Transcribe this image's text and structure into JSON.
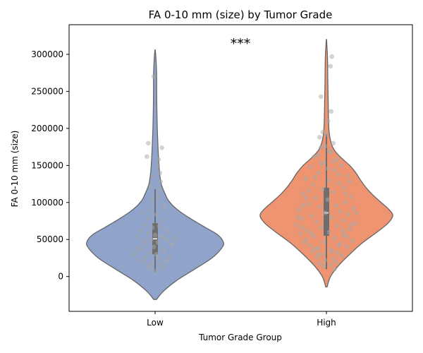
{
  "chart_data": {
    "type": "violin",
    "title": "FA 0-10 mm (size) by Tumor Grade",
    "xlabel": "Tumor Grade Group",
    "ylabel": "FA 0-10 mm (size)",
    "categories": [
      "Low",
      "High"
    ],
    "ylim": [
      -47000,
      340000
    ],
    "yticks": [
      0,
      50000,
      100000,
      150000,
      200000,
      250000,
      300000
    ],
    "ytick_labels": [
      "0",
      "50000",
      "100000",
      "150000",
      "200000",
      "250000",
      "300000"
    ],
    "annotation": "***",
    "colors": {
      "Low": "#8fa3cb",
      "High": "#ef9470",
      "points": "#a8a8a8",
      "outline": "#666666",
      "box": "#6e6e6e"
    },
    "grid": false,
    "legend": "none",
    "series": [
      {
        "category": "Low",
        "color": "#8fa3cb",
        "range": [
          -31000,
          306000
        ],
        "box": {
          "q1": 30000,
          "median": 51000,
          "q3": 72000,
          "whisker_low": 6000,
          "whisker_high": 118000
        },
        "density": [
          [
            -31000,
            0.02
          ],
          [
            -20000,
            0.12
          ],
          [
            -5000,
            0.32
          ],
          [
            10000,
            0.58
          ],
          [
            25000,
            0.83
          ],
          [
            38000,
            0.97
          ],
          [
            46000,
            1.0
          ],
          [
            56000,
            0.92
          ],
          [
            66000,
            0.74
          ],
          [
            78000,
            0.52
          ],
          [
            90000,
            0.33
          ],
          [
            102000,
            0.2
          ],
          [
            115000,
            0.13
          ],
          [
            125000,
            0.09
          ],
          [
            140000,
            0.065
          ],
          [
            160000,
            0.05
          ],
          [
            180000,
            0.04
          ],
          [
            200000,
            0.032
          ],
          [
            225000,
            0.026
          ],
          [
            250000,
            0.023
          ],
          [
            265000,
            0.023
          ],
          [
            280000,
            0.02
          ],
          [
            295000,
            0.012
          ],
          [
            306000,
            0.002
          ]
        ],
        "points": [
          [
            -0.02,
            270000
          ],
          [
            0.05,
            158000
          ],
          [
            -0.12,
            162000
          ],
          [
            0.04,
            150000
          ],
          [
            0.07,
            140000
          ],
          [
            0.08,
            128000
          ],
          [
            0.06,
            118000
          ],
          [
            -0.03,
            135000
          ],
          [
            0.05,
            108000
          ],
          [
            -0.05,
            104000
          ],
          [
            0.12,
            92000
          ],
          [
            -0.08,
            90000
          ],
          [
            -0.18,
            86000
          ],
          [
            0.02,
            84000
          ],
          [
            -0.1,
            78000
          ],
          [
            0.1,
            76000
          ],
          [
            -0.15,
            70000
          ],
          [
            0.06,
            68000
          ],
          [
            -0.04,
            66000
          ],
          [
            0.15,
            64000
          ],
          [
            -0.22,
            62000
          ],
          [
            0.2,
            60000
          ],
          [
            -0.1,
            58000
          ],
          [
            0.0,
            56000
          ],
          [
            0.08,
            55000
          ],
          [
            -0.28,
            54000
          ],
          [
            0.12,
            52000
          ],
          [
            -0.06,
            50000
          ],
          [
            0.18,
            49000
          ],
          [
            -0.16,
            48000
          ],
          [
            0.04,
            46000
          ],
          [
            -0.12,
            44000
          ],
          [
            0.24,
            42000
          ],
          [
            -0.02,
            40000
          ],
          [
            0.1,
            38000
          ],
          [
            -0.2,
            36000
          ],
          [
            0.14,
            34000
          ],
          [
            -0.08,
            32000
          ],
          [
            0.02,
            30000
          ],
          [
            0.22,
            28000
          ],
          [
            -0.14,
            26000
          ],
          [
            0.06,
            24000
          ],
          [
            -0.24,
            22000
          ],
          [
            0.16,
            20000
          ],
          [
            -0.04,
            18000
          ],
          [
            0.08,
            16000
          ],
          [
            -0.1,
            14000
          ],
          [
            0.12,
            12000
          ],
          [
            -0.06,
            10000
          ],
          [
            0.02,
            8000
          ],
          [
            -0.16,
            20000
          ],
          [
            0.18,
            24000
          ],
          [
            -0.3,
            30000
          ],
          [
            0.26,
            44000
          ],
          [
            -0.26,
            38000
          ],
          [
            0.3,
            52000
          ],
          [
            0.14,
            96000
          ],
          [
            -0.06,
            122000
          ],
          [
            0.1,
            174000
          ],
          [
            -0.1,
            180000
          ]
        ]
      },
      {
        "category": "High",
        "color": "#ef9470",
        "range": [
          -14000,
          320000
        ],
        "box": {
          "q1": 55000,
          "median": 86000,
          "q3": 120000,
          "whisker_low": 10000,
          "whisker_high": 192000
        },
        "density": [
          [
            -14000,
            0.01
          ],
          [
            0,
            0.06
          ],
          [
            15000,
            0.18
          ],
          [
            30000,
            0.34
          ],
          [
            45000,
            0.52
          ],
          [
            60000,
            0.74
          ],
          [
            72000,
            0.9
          ],
          [
            82000,
            0.97
          ],
          [
            90000,
            0.92
          ],
          [
            100000,
            0.8
          ],
          [
            110000,
            0.68
          ],
          [
            120000,
            0.58
          ],
          [
            130000,
            0.5
          ],
          [
            140000,
            0.43
          ],
          [
            150000,
            0.34
          ],
          [
            160000,
            0.22
          ],
          [
            170000,
            0.12
          ],
          [
            180000,
            0.07
          ],
          [
            195000,
            0.04
          ],
          [
            215000,
            0.03
          ],
          [
            240000,
            0.025
          ],
          [
            265000,
            0.02
          ],
          [
            285000,
            0.018
          ],
          [
            300000,
            0.014
          ],
          [
            310000,
            0.008
          ],
          [
            320000,
            0.002
          ]
        ],
        "points": [
          [
            0.08,
            297000
          ],
          [
            0.06,
            284000
          ],
          [
            -0.08,
            243000
          ],
          [
            0.07,
            223000
          ],
          [
            0.02,
            210000
          ],
          [
            -0.05,
            195000
          ],
          [
            0.0,
            192000
          ],
          [
            -0.1,
            188000
          ],
          [
            0.1,
            180000
          ],
          [
            -0.08,
            174000
          ],
          [
            0.06,
            168000
          ],
          [
            -0.18,
            162000
          ],
          [
            0.16,
            158000
          ],
          [
            -0.04,
            154000
          ],
          [
            0.22,
            150000
          ],
          [
            -0.24,
            148000
          ],
          [
            0.12,
            144000
          ],
          [
            -0.12,
            140000
          ],
          [
            0.3,
            136000
          ],
          [
            -0.3,
            132000
          ],
          [
            0.04,
            130000
          ],
          [
            0.18,
            126000
          ],
          [
            -0.2,
            124000
          ],
          [
            0.26,
            120000
          ],
          [
            -0.06,
            118000
          ],
          [
            0.1,
            114000
          ],
          [
            -0.34,
            112000
          ],
          [
            0.36,
            108000
          ],
          [
            -0.16,
            106000
          ],
          [
            0.02,
            104000
          ],
          [
            0.28,
            100000
          ],
          [
            -0.26,
            98000
          ],
          [
            0.14,
            96000
          ],
          [
            -0.1,
            94000
          ],
          [
            0.4,
            92000
          ],
          [
            -0.4,
            90000
          ],
          [
            0.2,
            88000
          ],
          [
            -0.02,
            86000
          ],
          [
            0.32,
            84000
          ],
          [
            -0.22,
            82000
          ],
          [
            0.08,
            80000
          ],
          [
            -0.36,
            78000
          ],
          [
            0.24,
            76000
          ],
          [
            -0.14,
            74000
          ],
          [
            0.42,
            72000
          ],
          [
            -0.44,
            70000
          ],
          [
            0.16,
            68000
          ],
          [
            -0.08,
            66000
          ],
          [
            0.34,
            64000
          ],
          [
            -0.28,
            62000
          ],
          [
            0.04,
            60000
          ],
          [
            -0.38,
            58000
          ],
          [
            0.26,
            56000
          ],
          [
            -0.18,
            54000
          ],
          [
            0.12,
            52000
          ],
          [
            -0.3,
            50000
          ],
          [
            0.38,
            48000
          ],
          [
            -0.04,
            46000
          ],
          [
            0.2,
            44000
          ],
          [
            -0.24,
            42000
          ],
          [
            0.3,
            40000
          ],
          [
            -0.12,
            38000
          ],
          [
            0.06,
            36000
          ],
          [
            -0.2,
            34000
          ],
          [
            0.16,
            32000
          ],
          [
            -0.06,
            30000
          ],
          [
            0.22,
            28000
          ],
          [
            -0.14,
            26000
          ],
          [
            0.1,
            24000
          ],
          [
            -0.02,
            22000
          ],
          [
            0.14,
            20000
          ],
          [
            -0.1,
            18000
          ],
          [
            0.06,
            16000
          ],
          [
            -0.04,
            14000
          ],
          [
            0.12,
            10000
          ],
          [
            -0.3,
            106000
          ],
          [
            0.34,
            128000
          ],
          [
            -0.34,
            96000
          ],
          [
            0.44,
            86000
          ],
          [
            -0.42,
            80000
          ],
          [
            0.28,
            112000
          ],
          [
            -0.26,
            116000
          ],
          [
            0.18,
            138000
          ],
          [
            -0.16,
            134000
          ],
          [
            0.02,
            146000
          ],
          [
            -0.08,
            152000
          ],
          [
            0.1,
            156000
          ],
          [
            -0.12,
            164000
          ],
          [
            0.04,
            170000
          ],
          [
            -0.02,
            176000
          ],
          [
            0.36,
            70000
          ],
          [
            -0.36,
            66000
          ],
          [
            0.24,
            62000
          ],
          [
            -0.22,
            58000
          ],
          [
            0.3,
            54000
          ],
          [
            -0.32,
            46000
          ],
          [
            0.18,
            42000
          ],
          [
            -0.16,
            38000
          ],
          [
            0.08,
            34000
          ],
          [
            -0.12,
            30000
          ]
        ]
      }
    ]
  }
}
